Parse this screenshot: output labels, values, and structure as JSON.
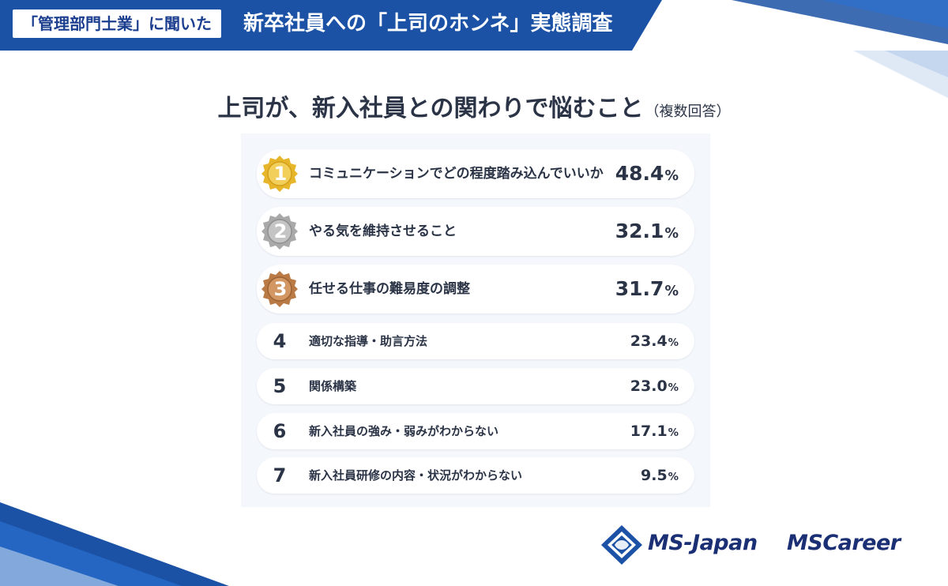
{
  "header": {
    "tag": "「管理部門士業」に聞いた",
    "title": "新卒社員への「上司のホンネ」実態調査"
  },
  "title": {
    "main": "上司が、新入社員との関わりで悩むこと",
    "note": "（複数回答）"
  },
  "chart_data": {
    "type": "table",
    "title": "上司が、新入社員との関わりで悩むこと（複数回答）",
    "unit": "%",
    "rows": [
      {
        "rank": "1",
        "label": "コミュニケーションでどの程度踏み込んでいいか",
        "value": "48.4",
        "medal": "gold"
      },
      {
        "rank": "2",
        "label": "やる気を維持させること",
        "value": "32.1",
        "medal": "silver"
      },
      {
        "rank": "3",
        "label": "任せる仕事の難易度の調整",
        "value": "31.7",
        "medal": "bronze"
      },
      {
        "rank": "4",
        "label": "適切な指導・助言方法",
        "value": "23.4"
      },
      {
        "rank": "5",
        "label": "関係構築",
        "value": "23.0"
      },
      {
        "rank": "6",
        "label": "新入社員の強み・弱みがわからない",
        "value": "17.1"
      },
      {
        "rank": "7",
        "label": "新入社員研修の内容・状況がわからない",
        "value": "9.5"
      }
    ]
  },
  "logos": {
    "ms_japan": "MS-Japan",
    "ms_career": "MSCareer"
  },
  "colors": {
    "brand_blue": "#1b52a6",
    "navy": "#1b2f74",
    "gold": "#e6b52a",
    "silver": "#a9a9a9",
    "bronze": "#b97a45"
  }
}
